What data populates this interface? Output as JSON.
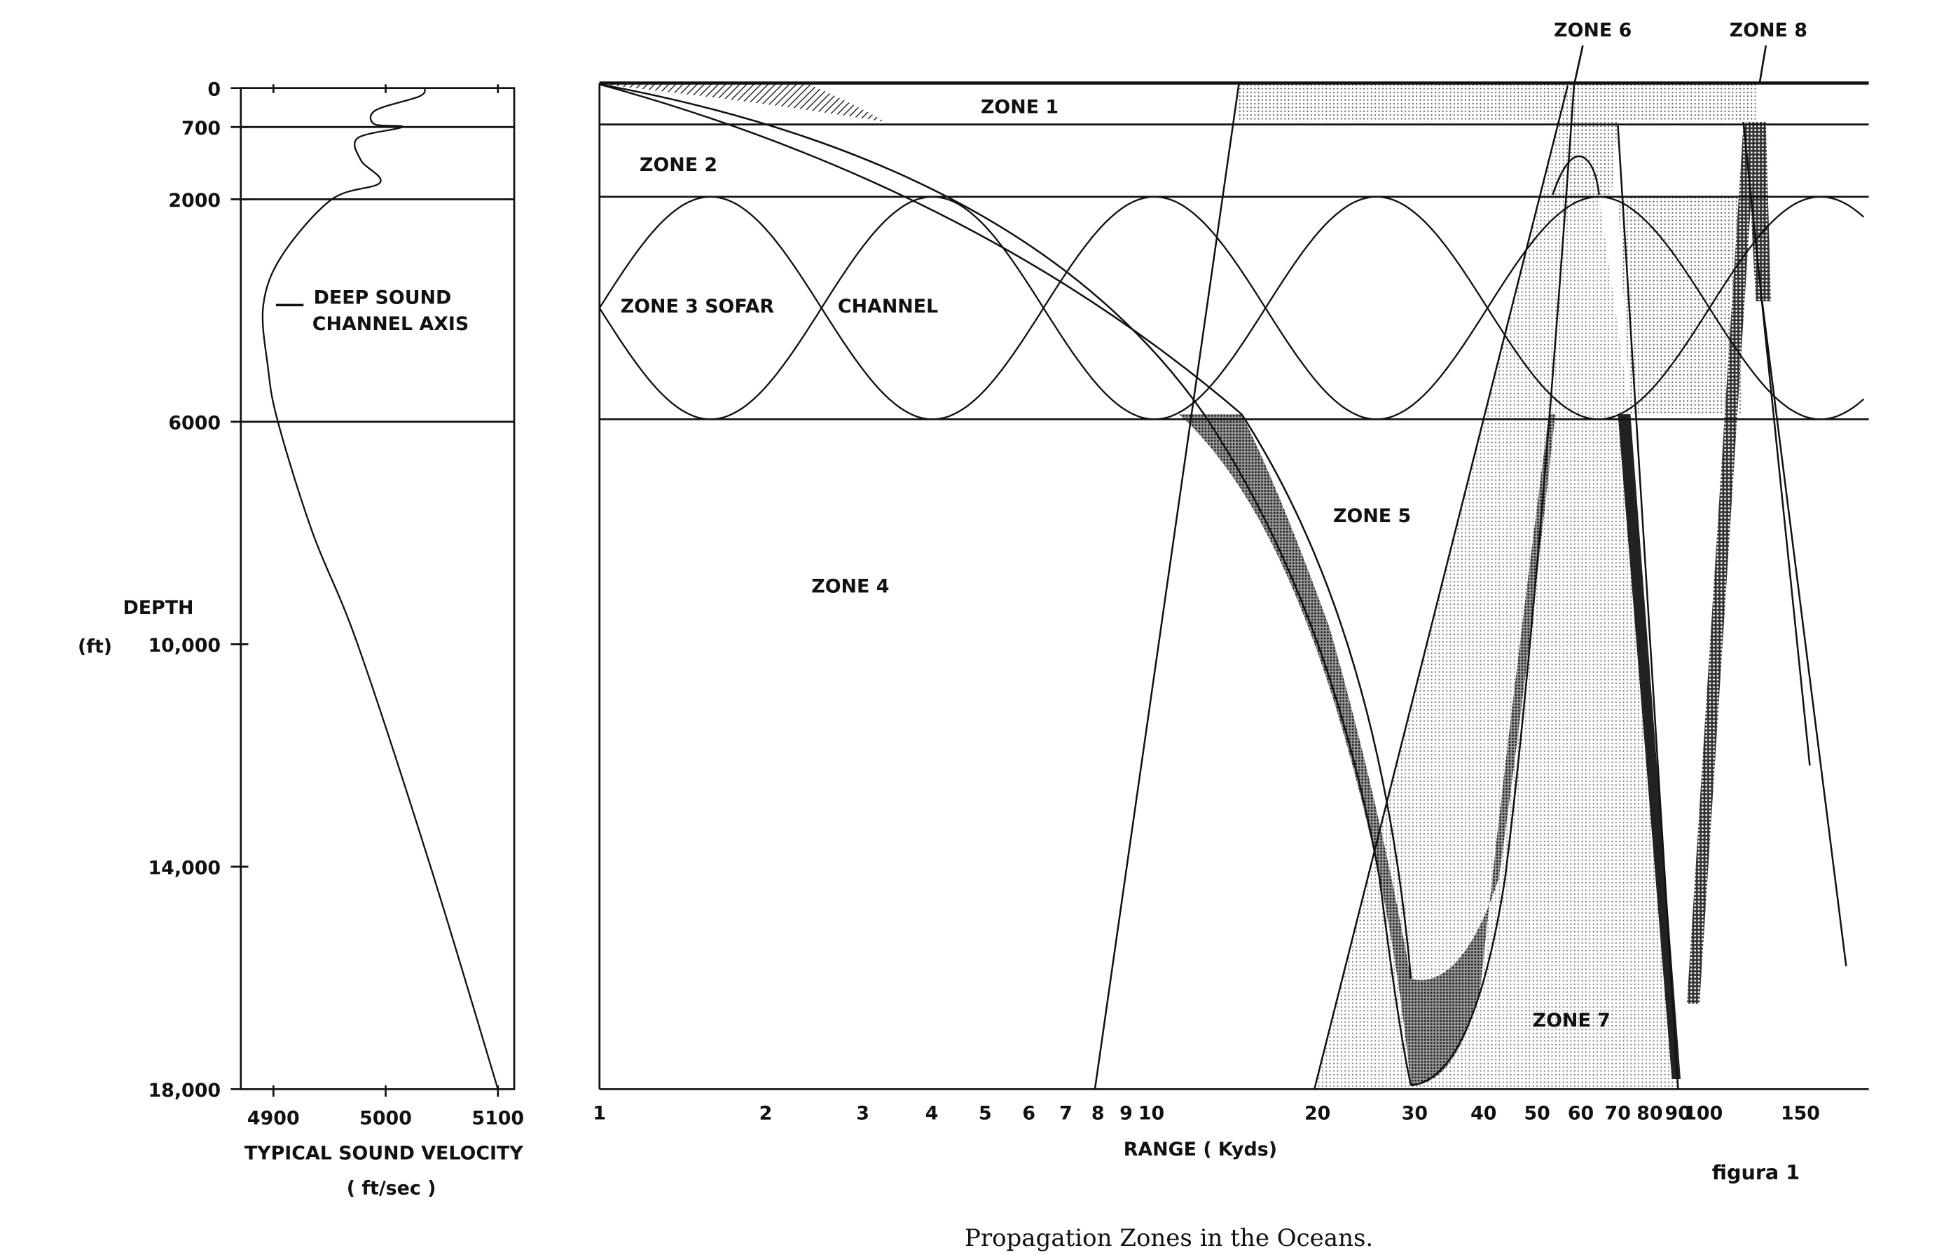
{
  "caption": "Propagation Zones in the Oceans.",
  "figure_label": "figura 1",
  "left_panel": {
    "ylabel_line1": "DEPTH",
    "ylabel_line2": "(ft)",
    "xlabel_line1": "TYPICAL SOUND VELOCITY",
    "xlabel_line2": "( ft/sec )",
    "annotation_line1": "DEEP SOUND",
    "annotation_line2": "CHANNEL AXIS",
    "y_ticks": [
      "0",
      "700",
      "2000",
      "6000",
      "10,000",
      "14,000",
      "18,000"
    ],
    "y_tick_values": [
      0,
      700,
      2000,
      6000,
      10000,
      14000,
      18000
    ],
    "x_ticks": [
      "4900",
      "5000",
      "5100"
    ],
    "x_tick_values": [
      4900,
      5000,
      5100
    ]
  },
  "right_panel": {
    "xlabel": "RANGE ( Kyds)",
    "x_ticks": [
      "1",
      "2",
      "3",
      "4",
      "5",
      "6",
      "7",
      "8",
      "9",
      "10",
      "20",
      "30",
      "40",
      "50",
      "60",
      "70",
      "80",
      "90",
      "100",
      "150"
    ],
    "x_tick_values": [
      1,
      2,
      3,
      4,
      5,
      6,
      7,
      8,
      9,
      10,
      20,
      30,
      40,
      50,
      60,
      70,
      80,
      90,
      100,
      150
    ],
    "x_scale": "log",
    "zones": {
      "zone1": "ZONE 1",
      "zone2": "ZONE 2",
      "zone3a": "ZONE 3 SOFAR",
      "zone3b": "CHANNEL",
      "zone4": "ZONE 4",
      "zone5": "ZONE 5",
      "zone6": "ZONE 6",
      "zone7": "ZONE 7",
      "zone8": "ZONE 8"
    },
    "layer_depths_ft": [
      700,
      2000,
      6000
    ]
  },
  "chart_data": {
    "type": "line",
    "xlabel": "TYPICAL SOUND VELOCITY ( ft/sec )",
    "ylabel": "DEPTH (ft)",
    "xlim": [
      4880,
      5120
    ],
    "ylim": [
      18000,
      0
    ],
    "series": [
      {
        "depth_ft": [
          0,
          150,
          400,
          650,
          700,
          900,
          1300,
          1700,
          2000,
          3000,
          3900,
          5000,
          6000,
          8000,
          10000,
          14000,
          18000
        ],
        "velocity": [
          5035,
          5030,
          4991,
          4990,
          5015,
          4975,
          4978,
          4995,
          4952,
          4908,
          4891,
          4895,
          4904,
          4935,
          4975,
          5040,
          5100
        ]
      }
    ]
  }
}
